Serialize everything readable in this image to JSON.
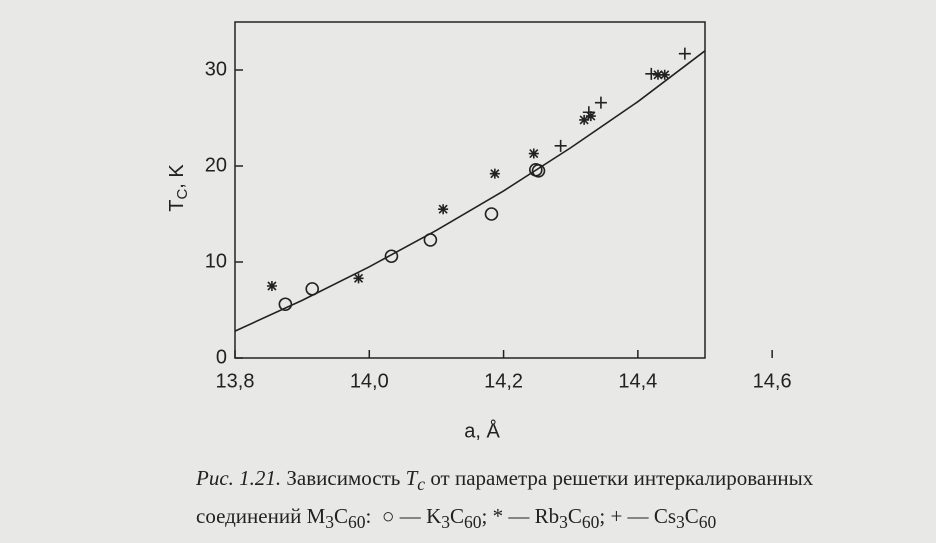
{
  "chart_data": {
    "type": "scatter",
    "x_label": "a, Å",
    "y_label": {
      "symbol": "T",
      "sub": "C",
      "unit": ", K"
    },
    "xlim": [
      13.8,
      14.5
    ],
    "ylim": [
      0,
      35
    ],
    "xticks": [
      {
        "value": 13.8,
        "label": "13,8"
      },
      {
        "value": 14.0,
        "label": "14,0"
      },
      {
        "value": 14.2,
        "label": "14,2"
      },
      {
        "value": 14.4,
        "label": "14,4"
      },
      {
        "value": 14.6,
        "label": "14,6"
      }
    ],
    "yticks": [
      0,
      10,
      20,
      30
    ],
    "series": [
      {
        "name": "K3C60",
        "marker": "circle",
        "color": "#222222",
        "x": [
          13.875,
          13.915,
          14.033,
          14.091,
          14.182,
          14.248,
          14.252
        ],
        "values": [
          5.6,
          7.2,
          10.6,
          12.3,
          15.0,
          19.6,
          19.5
        ]
      },
      {
        "name": "Rb3C60",
        "marker": "star",
        "color": "#222222",
        "x": [
          13.855,
          13.984,
          14.11,
          14.187,
          14.245,
          14.32,
          14.33,
          14.43,
          14.44
        ],
        "values": [
          7.5,
          8.3,
          15.5,
          19.2,
          21.3,
          24.8,
          25.2,
          29.5,
          29.5
        ]
      },
      {
        "name": "Cs3C60",
        "marker": "plus",
        "color": "#222222",
        "x": [
          14.285,
          14.327,
          14.345,
          14.42,
          14.47
        ],
        "values": [
          22.1,
          25.6,
          26.6,
          29.6,
          31.7
        ]
      },
      {
        "marker": "line",
        "color": "#222222",
        "x": [
          13.8,
          13.9,
          14.0,
          14.1,
          14.2,
          14.3,
          14.4,
          14.5
        ],
        "values": [
          2.8,
          6.0,
          9.5,
          13.3,
          17.4,
          21.9,
          26.7,
          32.0
        ]
      }
    ],
    "caption": {
      "figure": "Рис. 1.21.",
      "text1": "Зависимость",
      "symbol": "T",
      "symbol_sub": "c",
      "text2": "от параметра решетки интеркалированных",
      "text3": "соединений",
      "formula": "M3C60"
    }
  }
}
